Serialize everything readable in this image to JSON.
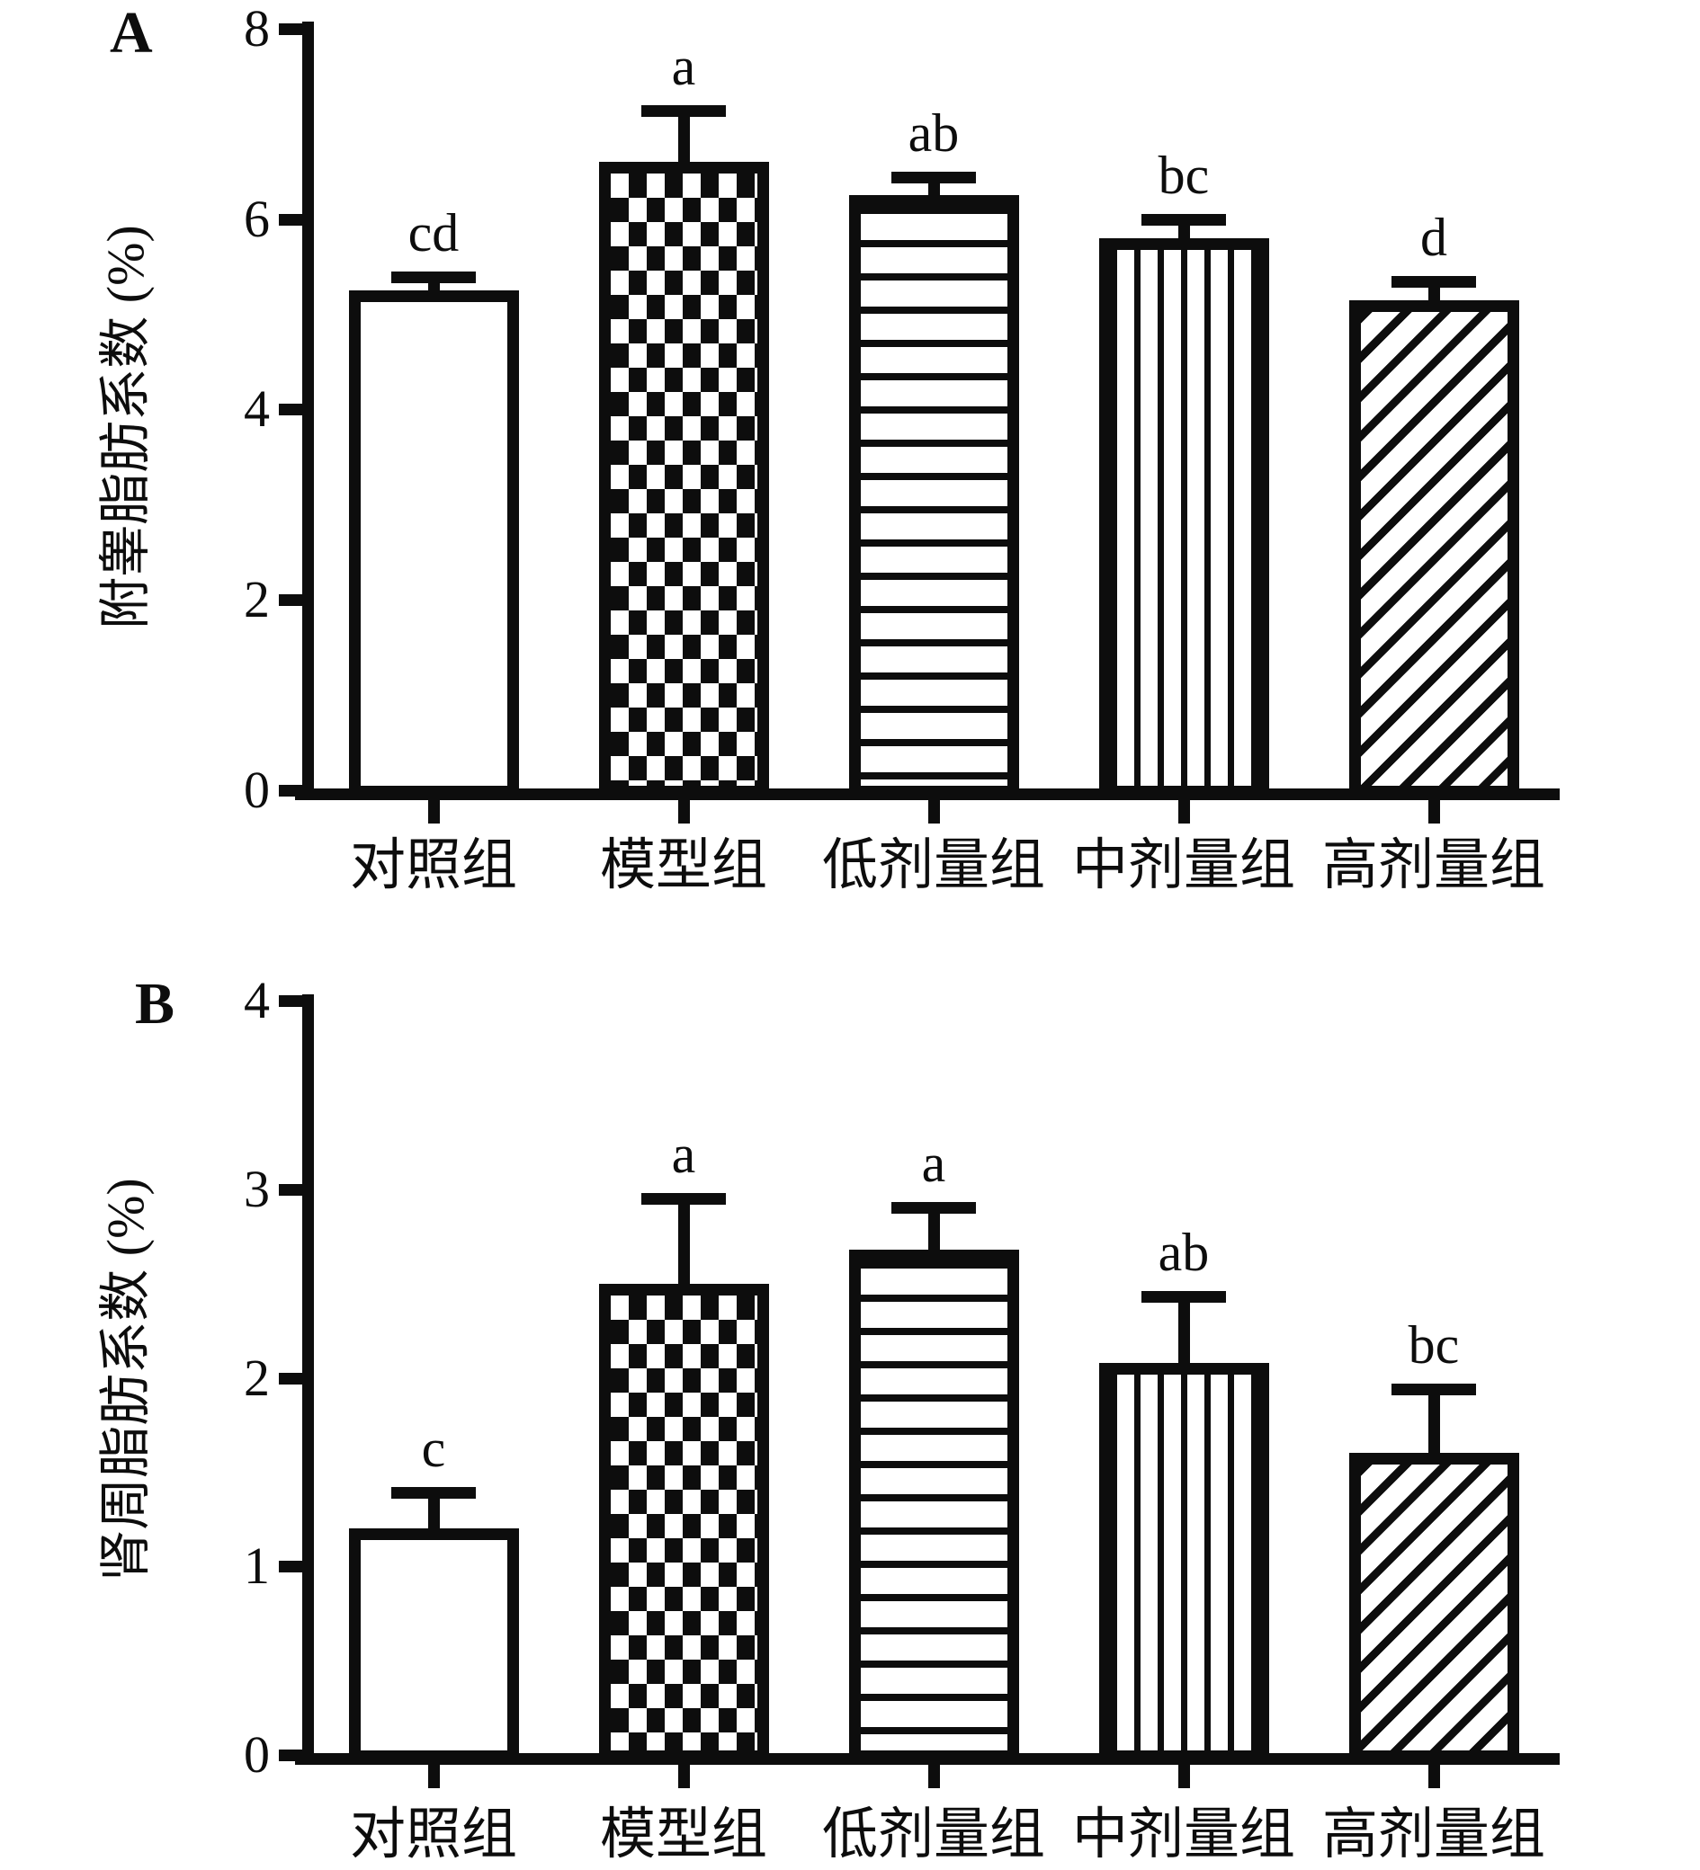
{
  "figure": {
    "background_color": "#ffffff",
    "ink_color": "#0d0d0d"
  },
  "chart_data": [
    {
      "panel_label": "A",
      "type": "bar",
      "ylabel": "附睾脂肪系数 (%)",
      "ylim": [
        0,
        8
      ],
      "yticks": [
        0,
        2,
        4,
        6,
        8
      ],
      "categories": [
        "对照组",
        "模型组",
        "低剂量组",
        "中剂量组",
        "高剂量组"
      ],
      "values": [
        5.25,
        6.6,
        6.25,
        5.8,
        5.15
      ],
      "error_plus": [
        0.2,
        0.6,
        0.25,
        0.25,
        0.25
      ],
      "sig_labels": [
        "cd",
        "a",
        "ab",
        "bc",
        "d"
      ],
      "bar_patterns": [
        "solid-white",
        "checkerboard",
        "horizontal-stripes",
        "vertical-stripes",
        "diagonal-stripes"
      ],
      "error_bar_style": "upper-cap",
      "grid": false,
      "legend": "none"
    },
    {
      "panel_label": "B",
      "type": "bar",
      "ylabel": "肾周脂肪系数 (%)",
      "ylim": [
        0,
        4
      ],
      "yticks": [
        0,
        1,
        2,
        3,
        4
      ],
      "categories": [
        "对照组",
        "模型组",
        "低剂量组",
        "中剂量组",
        "高剂量组"
      ],
      "values": [
        1.2,
        2.5,
        2.68,
        2.08,
        1.6
      ],
      "error_plus": [
        0.22,
        0.48,
        0.25,
        0.38,
        0.37
      ],
      "sig_labels": [
        "c",
        "a",
        "a",
        "ab",
        "bc"
      ],
      "bar_patterns": [
        "solid-white",
        "checkerboard",
        "horizontal-stripes",
        "vertical-stripes",
        "diagonal-stripes"
      ],
      "error_bar_style": "upper-cap",
      "grid": false,
      "legend": "none"
    }
  ]
}
